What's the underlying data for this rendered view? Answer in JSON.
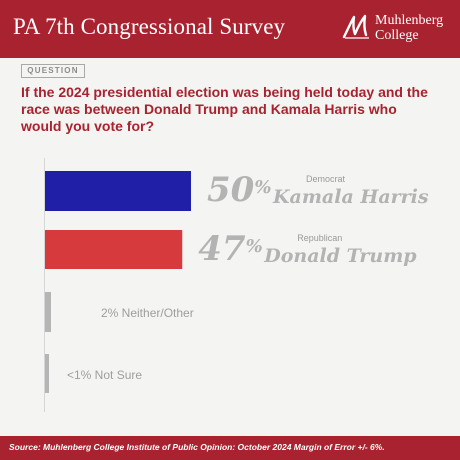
{
  "header": {
    "title": "PA 7th Congressional Survey",
    "logo_line1": "Muhlenberg",
    "logo_line2": "College"
  },
  "question": {
    "tag": "QUESTION",
    "text": "If the 2024 presidential election was being held today and the race was between Donald Trump and Kamala Harris who would you vote for?"
  },
  "chart_data": {
    "type": "bar",
    "orientation": "horizontal",
    "categories": [
      "Kamala Harris",
      "Donald Trump",
      "Neither/Other",
      "Not Sure"
    ],
    "parties": [
      "Democrat",
      "Republican",
      "",
      ""
    ],
    "values": [
      50,
      47,
      2,
      1
    ],
    "display_values": [
      "50",
      "47",
      "2%",
      "<1%"
    ],
    "pct_suffix": "%",
    "colors": [
      "#1f1fa8",
      "#d63a3d",
      "#b5b5b5",
      "#b5b5b5"
    ],
    "small_labels": [
      "",
      "",
      "2% Neither/Other",
      "<1% Not Sure"
    ]
  },
  "footer": {
    "source": "Source: Muhlenberg College Institute of Public Opinion: October 2024 Margin of Error +/- 6%."
  }
}
